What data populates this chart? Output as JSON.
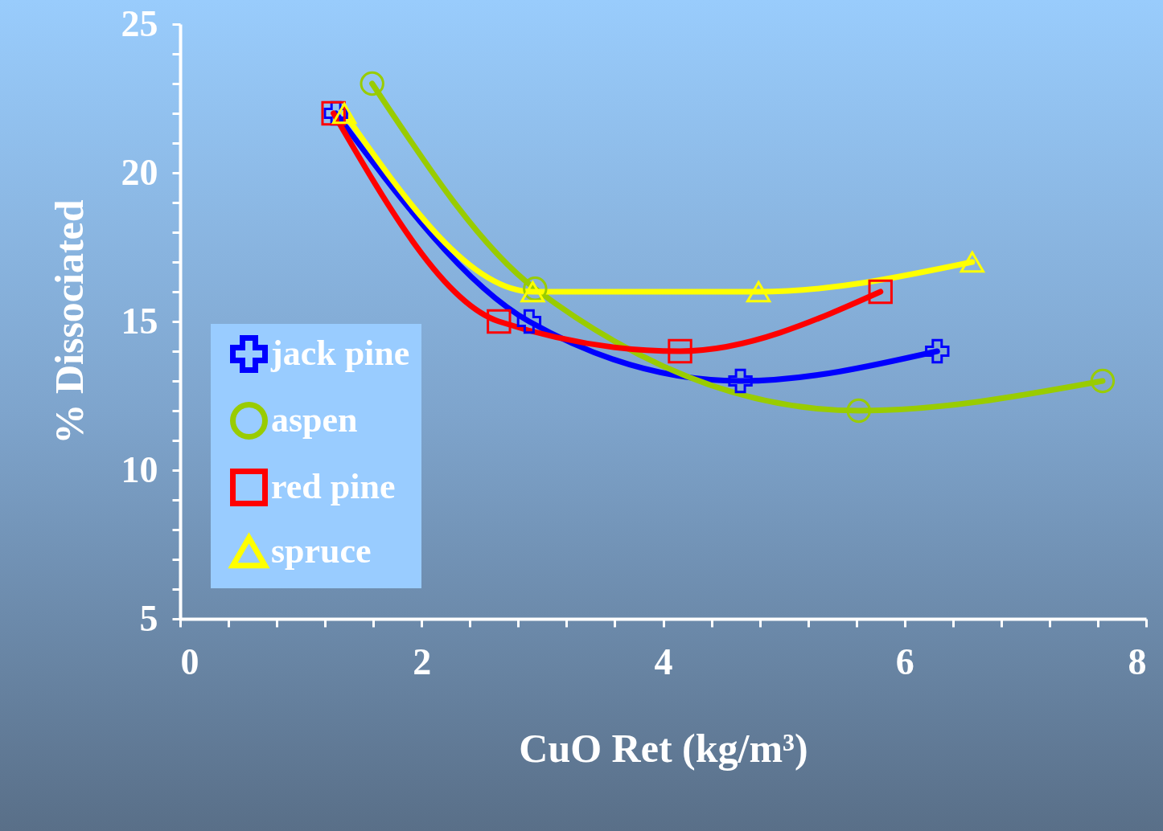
{
  "chart_data": {
    "type": "line",
    "xlabel": "CuO Ret (kg/m³)",
    "ylabel": "% Dissociated",
    "xlim": [
      0,
      8
    ],
    "ylim": [
      5,
      25
    ],
    "xticks": [
      0,
      {
        "value": 0.4,
        "label": null
      },
      {
        "value": 0.8,
        "label": null
      },
      {
        "value": 1.2,
        "label": null
      },
      {
        "value": 1.6,
        "label": null
      },
      2,
      {
        "value": 2.4,
        "label": null
      },
      {
        "value": 2.8,
        "label": null
      },
      {
        "value": 3.2,
        "label": null
      },
      {
        "value": 3.6,
        "label": null
      },
      4,
      {
        "value": 4.4,
        "label": null
      },
      {
        "value": 4.8,
        "label": null
      },
      {
        "value": 5.2,
        "label": null
      },
      {
        "value": 5.6,
        "label": null
      },
      6,
      {
        "value": 6.4,
        "label": null
      },
      {
        "value": 6.8,
        "label": null
      },
      {
        "value": 7.2,
        "label": null
      },
      {
        "value": 7.6,
        "label": null
      },
      8
    ],
    "yticks": [
      5,
      {
        "value": 6,
        "label": null
      },
      {
        "value": 7,
        "label": null
      },
      {
        "value": 8,
        "label": null
      },
      {
        "value": 9,
        "label": null
      },
      10,
      {
        "value": 11,
        "label": null
      },
      {
        "value": 12,
        "label": null
      },
      {
        "value": 13,
        "label": null
      },
      {
        "value": 14,
        "label": null
      },
      15,
      {
        "value": 16,
        "label": null
      },
      {
        "value": 17,
        "label": null
      },
      {
        "value": 18,
        "label": null
      },
      {
        "value": 19,
        "label": null
      },
      20,
      {
        "value": 21,
        "label": null
      },
      {
        "value": 22,
        "label": null
      },
      {
        "value": 23,
        "label": null
      },
      {
        "value": 24,
        "label": null
      },
      25
    ],
    "grid": false,
    "legend": "bottom left",
    "line_style": "solid",
    "series": [
      {
        "name": "jack pine",
        "color": "#0000ff",
        "marker": "cross",
        "x": [
          1.29,
          2.89,
          4.64,
          6.27
        ],
        "values": [
          22,
          15,
          13,
          14
        ]
      },
      {
        "name": "aspen",
        "color": "#99cc00",
        "marker": "circle",
        "x": [
          1.59,
          2.94,
          5.62,
          7.64
        ],
        "values": [
          23,
          16.1,
          12,
          13
        ]
      },
      {
        "name": "red pine",
        "color": "#ff0000",
        "marker": "square",
        "x": [
          1.27,
          2.64,
          4.14,
          5.8
        ],
        "values": [
          22,
          15,
          14,
          16
        ]
      },
      {
        "name": "spruce",
        "color": "#ffff00",
        "marker": "triangle",
        "x": [
          1.36,
          2.92,
          4.79,
          6.56
        ],
        "values": [
          22,
          16,
          16,
          17
        ]
      }
    ]
  }
}
